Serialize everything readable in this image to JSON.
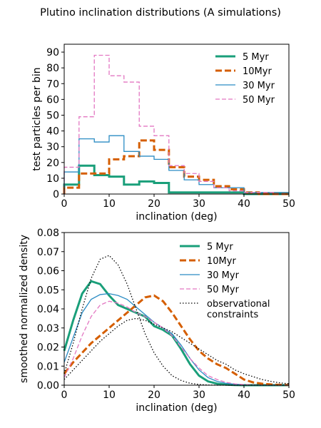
{
  "figure": {
    "title": "Plutino inclination distributions (A simulations)"
  },
  "chart_data": [
    {
      "type": "step-histogram",
      "xlabel": "inclination (deg)",
      "ylabel": "test particles per bin",
      "xlim": [
        0,
        50
      ],
      "ylim": [
        0,
        95
      ],
      "xticks": [
        "0",
        "10",
        "20",
        "30",
        "40",
        "50"
      ],
      "yticks": [
        "0",
        "10",
        "20",
        "30",
        "40",
        "50",
        "60",
        "70",
        "80",
        "90"
      ],
      "grid": false,
      "legend_position": "top-right",
      "bin_edges": [
        0,
        3.3,
        6.7,
        10,
        13.3,
        16.7,
        20,
        23.3,
        26.7,
        30,
        33.3,
        36.7,
        40,
        43.3,
        46.7,
        50
      ],
      "series": [
        {
          "name": "5 Myr",
          "color": "#1a9f7a",
          "style": "solid",
          "width": "thick",
          "values": [
            6,
            18,
            12,
            11,
            6,
            8,
            7,
            1,
            1,
            1,
            1,
            1,
            0,
            0,
            0
          ]
        },
        {
          "name": "10Myr",
          "color": "#d55e00",
          "style": "dashed",
          "width": "thick",
          "values": [
            4,
            13,
            13,
            22,
            24,
            34,
            28,
            17,
            11,
            9,
            5,
            3,
            1,
            0,
            0
          ]
        },
        {
          "name": "30 Myr",
          "color": "#2b8cc4",
          "style": "solid",
          "width": "thin",
          "values": [
            14,
            35,
            33,
            37,
            27,
            24,
            22,
            15,
            9,
            6,
            4,
            4,
            1,
            1,
            1
          ]
        },
        {
          "name": "50 Myr",
          "color": "#e377c2",
          "style": "dashed",
          "width": "thin",
          "values": [
            17,
            49,
            88,
            75,
            71,
            43,
            37,
            18,
            13,
            8,
            4,
            2,
            1,
            1,
            0
          ]
        }
      ]
    },
    {
      "type": "line",
      "xlabel": "inclination (deg)",
      "ylabel": "smoothed normalized density",
      "xlim": [
        0,
        50
      ],
      "ylim": [
        0,
        0.08
      ],
      "xticks": [
        "0",
        "10",
        "20",
        "30",
        "40",
        "50"
      ],
      "yticks": [
        "0.00",
        "0.01",
        "0.02",
        "0.03",
        "0.04",
        "0.05",
        "0.06",
        "0.07",
        "0.08"
      ],
      "grid": false,
      "legend_position": "top-right",
      "x": [
        0,
        2,
        4,
        6,
        8,
        10,
        12,
        14,
        16,
        18,
        20,
        22,
        24,
        26,
        28,
        30,
        32,
        34,
        36,
        38,
        40,
        42,
        44,
        46,
        48,
        50
      ],
      "series": [
        {
          "name": "5 Myr",
          "color": "#1a9f7a",
          "style": "solid",
          "width": "thick",
          "values": [
            0.018,
            0.034,
            0.048,
            0.0545,
            0.053,
            0.047,
            0.042,
            0.04,
            0.038,
            0.036,
            0.031,
            0.029,
            0.026,
            0.019,
            0.011,
            0.005,
            0.002,
            0.0008,
            0.0003,
            0.0001,
            0,
            0,
            0,
            0,
            0,
            0
          ]
        },
        {
          "name": "10Myr",
          "color": "#d55e00",
          "style": "dashed",
          "width": "thick",
          "values": [
            0.006,
            0.012,
            0.017,
            0.022,
            0.026,
            0.03,
            0.034,
            0.038,
            0.042,
            0.046,
            0.047,
            0.044,
            0.038,
            0.031,
            0.024,
            0.018,
            0.014,
            0.011,
            0.009,
            0.006,
            0.003,
            0.0015,
            0.0008,
            0.0004,
            0.0002,
            0.0001
          ]
        },
        {
          "name": "30 Myr",
          "color": "#2b8cc4",
          "style": "solid",
          "width": "thin",
          "values": [
            0.012,
            0.025,
            0.038,
            0.045,
            0.0475,
            0.048,
            0.047,
            0.045,
            0.041,
            0.037,
            0.033,
            0.03,
            0.027,
            0.021,
            0.014,
            0.008,
            0.004,
            0.002,
            0.001,
            0.0005,
            0.0002,
            0,
            0,
            0,
            0,
            0
          ]
        },
        {
          "name": "50 Myr",
          "color": "#e377c2",
          "style": "dashed",
          "width": "thin",
          "values": [
            0.004,
            0.014,
            0.026,
            0.036,
            0.042,
            0.044,
            0.043,
            0.041,
            0.038,
            0.036,
            0.033,
            0.03,
            0.026,
            0.02,
            0.014,
            0.009,
            0.005,
            0.003,
            0.0015,
            0.0007,
            0.0003,
            0.0001,
            0,
            0,
            0,
            0
          ]
        },
        {
          "name": "observational\nconstraints",
          "color": "#000000",
          "style": "dotted",
          "width": "thin",
          "values": [
            0.006,
            0.022,
            0.04,
            0.056,
            0.066,
            0.068,
            0.063,
            0.053,
            0.04,
            0.027,
            0.017,
            0.01,
            0.005,
            0.0025,
            0.001,
            0.0004,
            0.0001,
            0,
            0,
            0,
            0,
            0,
            0,
            0,
            0,
            0
          ]
        },
        {
          "name": "",
          "color": "#000000",
          "style": "dotted",
          "width": "thin",
          "values": [
            0.003,
            0.008,
            0.013,
            0.018,
            0.023,
            0.027,
            0.031,
            0.034,
            0.035,
            0.034,
            0.032,
            0.03,
            0.028,
            0.025,
            0.022,
            0.019,
            0.016,
            0.013,
            0.011,
            0.008,
            0.006,
            0.0045,
            0.003,
            0.002,
            0.0012,
            0.0008
          ]
        }
      ]
    }
  ]
}
